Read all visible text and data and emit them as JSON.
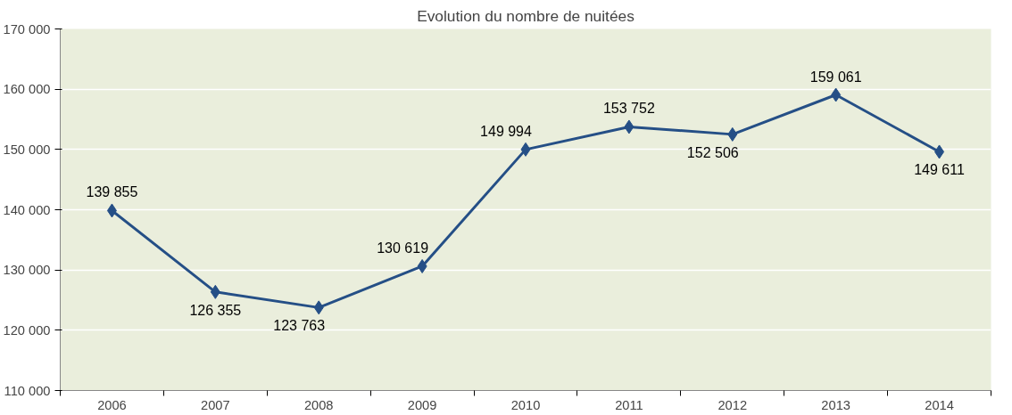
{
  "chart_data": {
    "type": "line",
    "title": "Evolution du nombre de nuitées",
    "categories": [
      "2006",
      "2007",
      "2008",
      "2009",
      "2010",
      "2011",
      "2012",
      "2013",
      "2014"
    ],
    "series": [
      {
        "color": "#254f86",
        "values": [
          139855,
          126355,
          123763,
          130619,
          149994,
          153752,
          152506,
          159061,
          149611
        ]
      }
    ],
    "value_labels": [
      "139 855",
      "126 355",
      "123 763",
      "130 619",
      "149 994",
      "153 752",
      "152 506",
      "159 061",
      "149 611"
    ],
    "ylim": [
      110000,
      170000
    ],
    "yticks": [
      {
        "value": 110000,
        "label": "110 000"
      },
      {
        "value": 120000,
        "label": "120 000"
      },
      {
        "value": 130000,
        "label": "130 000"
      },
      {
        "value": 140000,
        "label": "140 000"
      },
      {
        "value": 150000,
        "label": "150 000"
      },
      {
        "value": 160000,
        "label": "160 000"
      },
      {
        "value": 170000,
        "label": "170 000"
      }
    ],
    "grid": "y",
    "marker": "diamond",
    "line_style": "solid"
  }
}
